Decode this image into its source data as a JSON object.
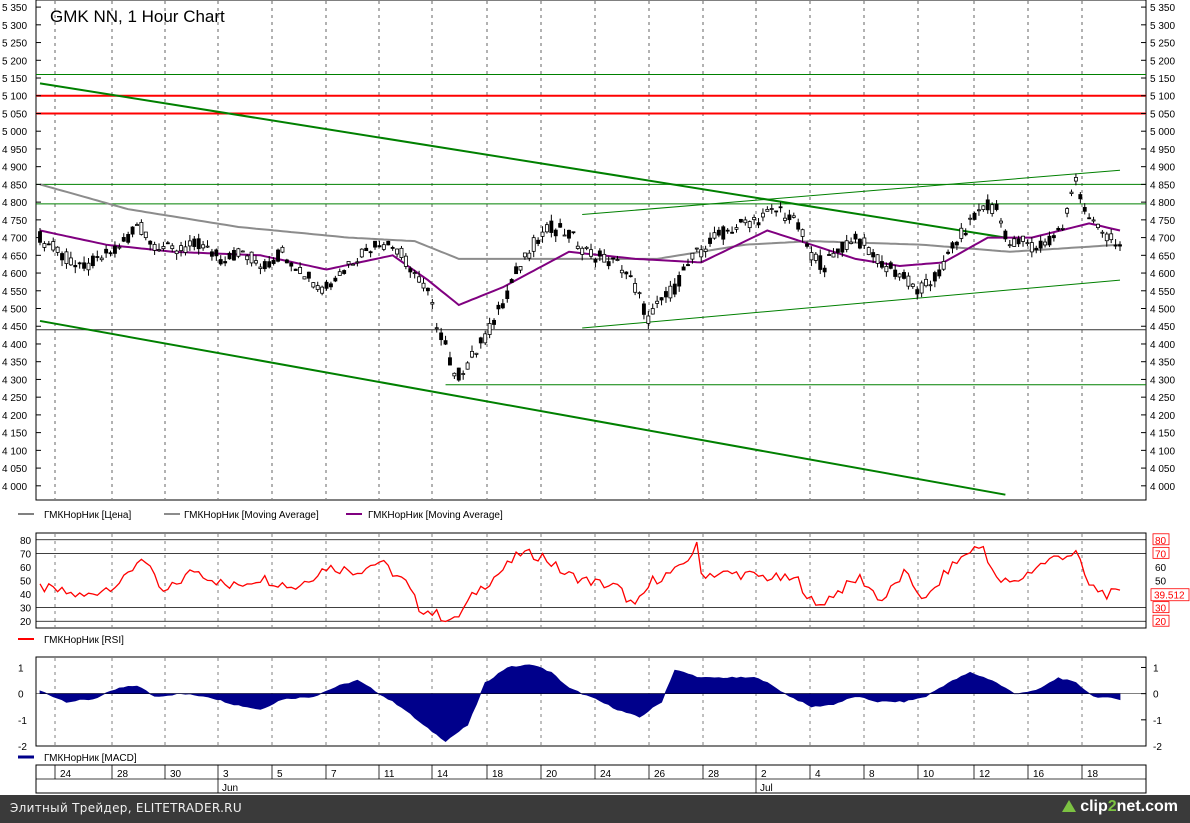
{
  "window": {
    "title": "GMK NN, 1 Hour Chart",
    "footer_text": "Элитный Трейдер, ELITETRADER.RU",
    "brand_a": "clip",
    "brand_b": "2",
    "brand_c": "net.com"
  },
  "colors": {
    "candles": "#000000",
    "ma_long": "#8c8c8c",
    "ma_short": "#800080",
    "resistance": "#ff0000",
    "trend": "#008000",
    "rsi": "#ff0000",
    "macd": "#00008b"
  },
  "legend": {
    "price": "ГМКНорНик [Цена]",
    "ma1": "ГМКНорНик [Moving Average]",
    "ma2": "ГМКНорНик [Moving Average]",
    "rsi": "ГМКНорНик [RSI]",
    "macd": "ГМКНорНик [MACD]"
  },
  "chart_data": [
    {
      "type": "candlestick",
      "title": "GMK NN, 1 Hour Chart",
      "ylim": [
        3960,
        5370
      ],
      "y_ticks": [
        "4 000",
        "4 050",
        "4 100",
        "4 150",
        "4 200",
        "4 250",
        "4 300",
        "4 350",
        "4 400",
        "4 450",
        "4 500",
        "4 550",
        "4 600",
        "4 650",
        "4 700",
        "4 750",
        "4 800",
        "4 850",
        "4 900",
        "4 950",
        "5 000",
        "5 050",
        "5 100",
        "5 150",
        "5 200",
        "5 250",
        "5 300",
        "5 350"
      ],
      "x_ticks": [
        "24",
        "28",
        "30",
        "3",
        "5",
        "7",
        "11",
        "14",
        "18",
        "20",
        "24",
        "26",
        "28",
        "2",
        "4",
        "8",
        "10",
        "12",
        "16",
        "18"
      ],
      "month_labels": [
        "Jun",
        "Jul"
      ],
      "price_path": [
        [
          0,
          4700
        ],
        [
          4,
          4660
        ],
        [
          9,
          4610
        ],
        [
          14,
          4640
        ],
        [
          19,
          4690
        ],
        [
          22,
          4740
        ],
        [
          25,
          4690
        ],
        [
          30,
          4660
        ],
        [
          36,
          4680
        ],
        [
          41,
          4640
        ],
        [
          46,
          4660
        ],
        [
          51,
          4620
        ],
        [
          55,
          4660
        ],
        [
          60,
          4600
        ],
        [
          64,
          4560
        ],
        [
          68,
          4600
        ],
        [
          72,
          4650
        ],
        [
          77,
          4690
        ],
        [
          81,
          4670
        ],
        [
          85,
          4600
        ],
        [
          88,
          4540
        ],
        [
          90,
          4460
        ],
        [
          92,
          4400
        ],
        [
          94,
          4300
        ],
        [
          96,
          4330
        ],
        [
          99,
          4380
        ],
        [
          102,
          4440
        ],
        [
          105,
          4520
        ],
        [
          108,
          4600
        ],
        [
          112,
          4680
        ],
        [
          116,
          4730
        ],
        [
          120,
          4710
        ],
        [
          124,
          4660
        ],
        [
          128,
          4640
        ],
        [
          132,
          4620
        ],
        [
          135,
          4560
        ],
        [
          138,
          4470
        ],
        [
          141,
          4520
        ],
        [
          144,
          4560
        ],
        [
          148,
          4640
        ],
        [
          152,
          4690
        ],
        [
          156,
          4720
        ],
        [
          160,
          4740
        ],
        [
          164,
          4760
        ],
        [
          168,
          4780
        ],
        [
          172,
          4730
        ],
        [
          175,
          4650
        ],
        [
          178,
          4620
        ],
        [
          181,
          4660
        ],
        [
          184,
          4700
        ],
        [
          187,
          4680
        ],
        [
          190,
          4640
        ],
        [
          193,
          4610
        ],
        [
          196,
          4590
        ],
        [
          199,
          4550
        ],
        [
          202,
          4570
        ],
        [
          205,
          4620
        ],
        [
          208,
          4690
        ],
        [
          211,
          4740
        ],
        [
          214,
          4790
        ],
        [
          217,
          4780
        ],
        [
          220,
          4680
        ],
        [
          223,
          4690
        ],
        [
          226,
          4670
        ],
        [
          229,
          4690
        ],
        [
          232,
          4730
        ],
        [
          234,
          4820
        ],
        [
          235,
          4870
        ],
        [
          237,
          4780
        ],
        [
          240,
          4720
        ],
        [
          243,
          4700
        ],
        [
          245,
          4670
        ]
      ],
      "series": [
        {
          "name": "ГМКНорНик [Moving Average]",
          "values": [
            [
              0,
              4850
            ],
            [
              20,
              4780
            ],
            [
              45,
              4730
            ],
            [
              70,
              4700
            ],
            [
              85,
              4690
            ],
            [
              95,
              4640
            ],
            [
              110,
              4640
            ],
            [
              140,
              4640
            ],
            [
              160,
              4680
            ],
            [
              175,
              4690
            ],
            [
              200,
              4680
            ],
            [
              220,
              4660
            ],
            [
              245,
              4680
            ]
          ]
        },
        {
          "name": "ГМКНорНик [Moving Average]",
          "values": [
            [
              0,
              4720
            ],
            [
              15,
              4680
            ],
            [
              30,
              4660
            ],
            [
              50,
              4650
            ],
            [
              65,
              4610
            ],
            [
              80,
              4650
            ],
            [
              88,
              4580
            ],
            [
              95,
              4510
            ],
            [
              105,
              4560
            ],
            [
              120,
              4660
            ],
            [
              135,
              4640
            ],
            [
              150,
              4630
            ],
            [
              165,
              4720
            ],
            [
              175,
              4680
            ],
            [
              185,
              4640
            ],
            [
              195,
              4620
            ],
            [
              205,
              4630
            ],
            [
              215,
              4700
            ],
            [
              225,
              4700
            ],
            [
              238,
              4740
            ],
            [
              245,
              4720
            ]
          ]
        }
      ],
      "levels": [
        5160,
        5100,
        5050,
        4850,
        4795,
        4440,
        4285
      ],
      "trendlines": [
        {
          "from": [
            0,
            5135
          ],
          "to": [
            219,
            4700
          ]
        },
        {
          "from": [
            0,
            4465
          ],
          "to": [
            219,
            3975
          ]
        },
        {
          "from": [
            123,
            4445
          ],
          "to": [
            245,
            4580
          ]
        },
        {
          "from": [
            123,
            4765
          ],
          "to": [
            245,
            4890
          ]
        }
      ]
    },
    {
      "type": "line",
      "title": "RSI",
      "ylim": [
        15,
        85
      ],
      "y_ticks": [
        "80",
        "70",
        "60",
        "50",
        "40",
        "30",
        "20"
      ],
      "levels": [
        70,
        30
      ],
      "last_value": "39.512",
      "values": [
        [
          0,
          45
        ],
        [
          10,
          38
        ],
        [
          19,
          50
        ],
        [
          23,
          68
        ],
        [
          28,
          40
        ],
        [
          35,
          58
        ],
        [
          43,
          45
        ],
        [
          50,
          52
        ],
        [
          58,
          45
        ],
        [
          65,
          60
        ],
        [
          72,
          57
        ],
        [
          77,
          64
        ],
        [
          83,
          48
        ],
        [
          86,
          30
        ],
        [
          90,
          25
        ],
        [
          94,
          20
        ],
        [
          99,
          42
        ],
        [
          104,
          55
        ],
        [
          109,
          70
        ],
        [
          114,
          68
        ],
        [
          119,
          55
        ],
        [
          124,
          50
        ],
        [
          131,
          45
        ],
        [
          135,
          30
        ],
        [
          139,
          50
        ],
        [
          145,
          58
        ],
        [
          149,
          75
        ],
        [
          150,
          55
        ],
        [
          158,
          55
        ],
        [
          166,
          52
        ],
        [
          172,
          50
        ],
        [
          176,
          30
        ],
        [
          180,
          40
        ],
        [
          186,
          52
        ],
        [
          191,
          35
        ],
        [
          196,
          55
        ],
        [
          201,
          35
        ],
        [
          206,
          58
        ],
        [
          211,
          72
        ],
        [
          214,
          75
        ],
        [
          217,
          50
        ],
        [
          221,
          48
        ],
        [
          226,
          60
        ],
        [
          231,
          68
        ],
        [
          235,
          70
        ],
        [
          238,
          46
        ],
        [
          242,
          40
        ],
        [
          245,
          40
        ]
      ]
    },
    {
      "type": "area",
      "title": "MACD",
      "ylim": [
        -2,
        1.4
      ],
      "y_ticks": [
        "1",
        "0",
        "-1",
        "-2"
      ],
      "values": [
        [
          0,
          0.1
        ],
        [
          6,
          -0.3
        ],
        [
          12,
          -0.2
        ],
        [
          18,
          0.2
        ],
        [
          22,
          0.3
        ],
        [
          26,
          -0.1
        ],
        [
          32,
          0.0
        ],
        [
          38,
          -0.1
        ],
        [
          44,
          -0.4
        ],
        [
          50,
          -0.6
        ],
        [
          55,
          -0.2
        ],
        [
          62,
          -0.1
        ],
        [
          68,
          0.3
        ],
        [
          72,
          0.5
        ],
        [
          77,
          0.0
        ],
        [
          82,
          -0.5
        ],
        [
          87,
          -1.2
        ],
        [
          92,
          -1.8
        ],
        [
          97,
          -1.2
        ],
        [
          101,
          0.4
        ],
        [
          106,
          1.0
        ],
        [
          112,
          1.1
        ],
        [
          116,
          0.8
        ],
        [
          120,
          0.2
        ],
        [
          126,
          -0.2
        ],
        [
          131,
          -0.6
        ],
        [
          136,
          -0.9
        ],
        [
          141,
          -0.3
        ],
        [
          144,
          0.9
        ],
        [
          150,
          0.6
        ],
        [
          157,
          0.6
        ],
        [
          163,
          0.6
        ],
        [
          169,
          0.0
        ],
        [
          175,
          -0.5
        ],
        [
          180,
          -0.4
        ],
        [
          185,
          -0.1
        ],
        [
          190,
          -0.3
        ],
        [
          196,
          -0.3
        ],
        [
          201,
          -0.1
        ],
        [
          206,
          0.4
        ],
        [
          211,
          0.8
        ],
        [
          216,
          0.5
        ],
        [
          221,
          0.0
        ],
        [
          226,
          0.1
        ],
        [
          231,
          0.6
        ],
        [
          235,
          0.4
        ],
        [
          239,
          -0.1
        ],
        [
          245,
          -0.2
        ]
      ]
    }
  ]
}
